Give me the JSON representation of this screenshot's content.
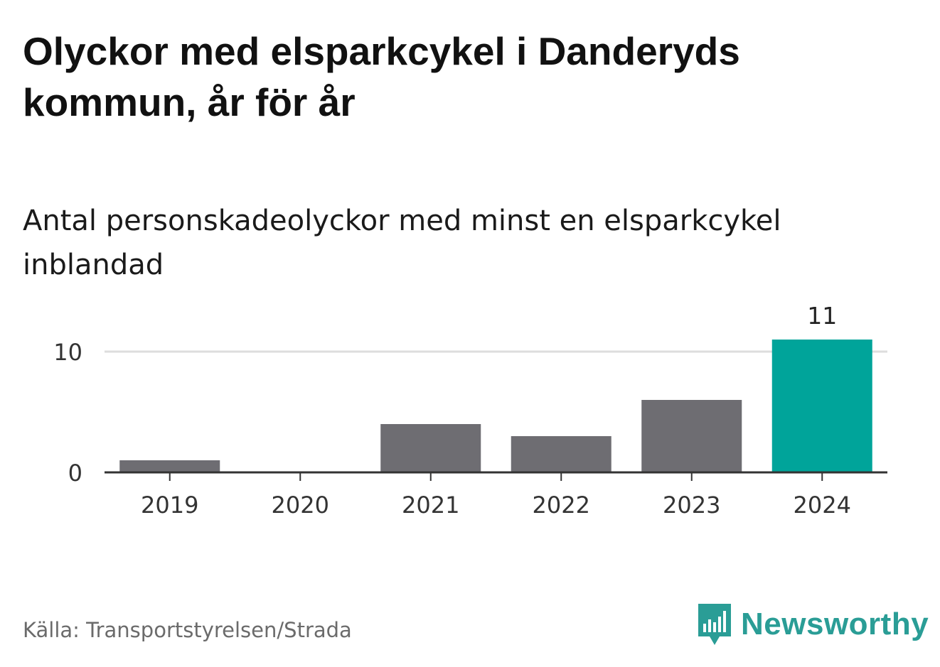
{
  "title": "Olyckor med elsparkcykel i Danderyds kommun, år för år",
  "subtitle": "Antal personskadeolyckor med minst en elsparkcykel inblandad",
  "source": "Källa: Transportstyrelsen/Strada",
  "brand": {
    "name": "Newsworthy",
    "icon": "newsworthy-logo-icon",
    "color": "#2a9d96"
  },
  "chart_data": {
    "type": "bar",
    "categories": [
      "2019",
      "2020",
      "2021",
      "2022",
      "2023",
      "2024"
    ],
    "values": [
      1,
      0,
      4,
      3,
      6,
      11
    ],
    "ylim": [
      0,
      11
    ],
    "yticks": [
      0,
      10
    ],
    "grid": true,
    "colors": {
      "default": "#6e6d72",
      "highlight": "#00a49a",
      "grid": "#dddddd",
      "axis": "#333333"
    },
    "highlight_index": 5,
    "data_labels": [
      {
        "index": 5,
        "text": "11"
      }
    ]
  }
}
